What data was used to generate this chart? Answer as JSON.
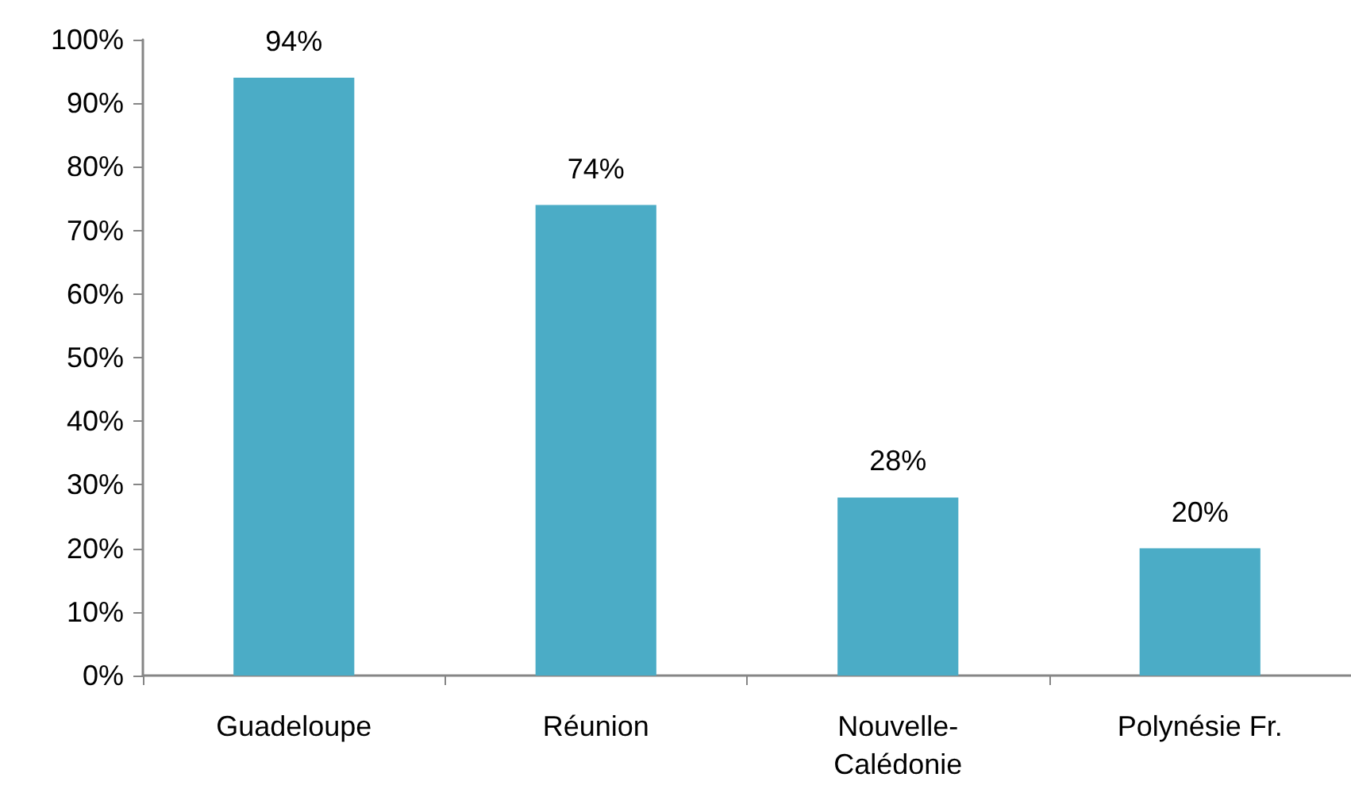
{
  "chart_data": {
    "type": "bar",
    "categories": [
      "Guadeloupe",
      "Réunion",
      "Nouvelle-Calédonie",
      "Polynésie Fr."
    ],
    "values": [
      94,
      74,
      28,
      20
    ],
    "color": "#4bacc6",
    "value_labels": [
      "94%",
      "74%",
      "28%",
      "20%"
    ],
    "ylim": [
      0,
      100
    ],
    "yticks": [
      {
        "value": 0,
        "label": "0%"
      },
      {
        "value": 10,
        "label": "10%"
      },
      {
        "value": 20,
        "label": "20%"
      },
      {
        "value": 30,
        "label": "30%"
      },
      {
        "value": 40,
        "label": "40%"
      },
      {
        "value": 50,
        "label": "50%"
      },
      {
        "value": 60,
        "label": "60%"
      },
      {
        "value": 70,
        "label": "70%"
      },
      {
        "value": 80,
        "label": "80%"
      },
      {
        "value": 90,
        "label": "90%"
      },
      {
        "value": 100,
        "label": "100%"
      }
    ],
    "grid": false
  }
}
